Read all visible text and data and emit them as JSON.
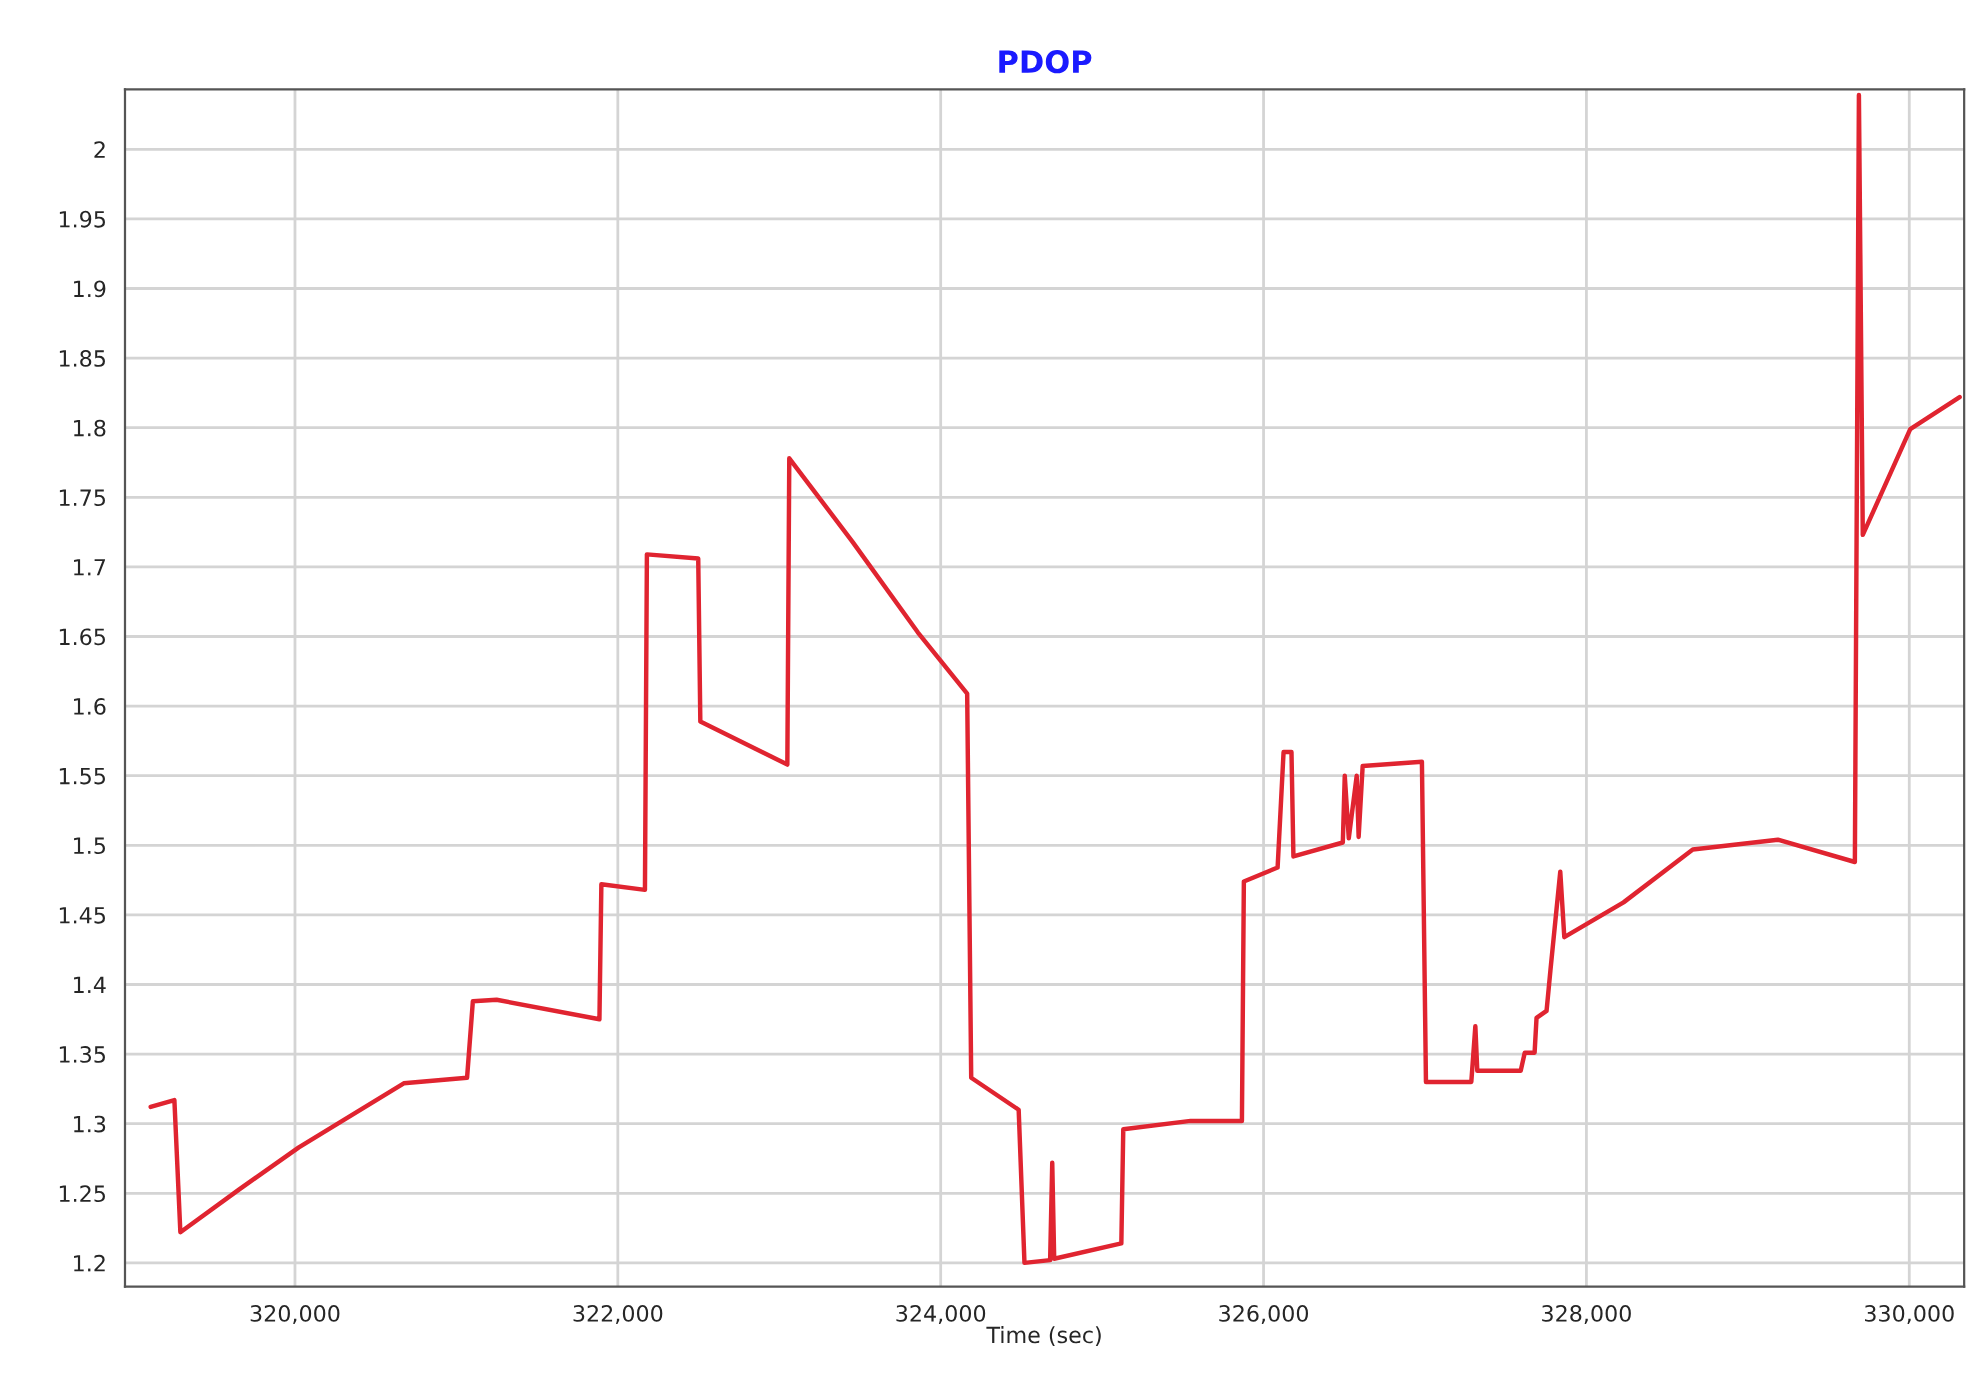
{
  "chart_data": {
    "type": "line",
    "title": "PDOP",
    "xlabel": "Time (sec)",
    "xlim": [
      318947,
      330340
    ],
    "ylim": [
      1.183,
      2.043
    ],
    "xticks": [
      {
        "value": 320000,
        "label": "320,000"
      },
      {
        "value": 322000,
        "label": "322,000"
      },
      {
        "value": 324000,
        "label": "324,000"
      },
      {
        "value": 326000,
        "label": "326,000"
      },
      {
        "value": 328000,
        "label": "328,000"
      },
      {
        "value": 330000,
        "label": "330,000"
      }
    ],
    "yticks": [
      1.2,
      1.25,
      1.3,
      1.35,
      1.4,
      1.45,
      1.5,
      1.55,
      1.6,
      1.65,
      1.7,
      1.75,
      1.8,
      1.85,
      1.9,
      1.95,
      2
    ],
    "grid": true,
    "marker": "none",
    "line_style": "solid",
    "series": [
      {
        "color": "#e02430",
        "x": [
          319106,
          319253,
          319290,
          319657,
          320024,
          320392,
          320674,
          321066,
          321102,
          321249,
          321886,
          321898,
          322168,
          322180,
          322498,
          322511,
          323050,
          323062,
          323454,
          323858,
          324164,
          324189,
          324483,
          324519,
          324678,
          324691,
          324703,
          325119,
          325131,
          325548,
          325866,
          325878,
          326087,
          326124,
          326173,
          326185,
          326491,
          326503,
          326528,
          326577,
          326589,
          326614,
          326981,
          327006,
          327287,
          327312,
          327324,
          327593,
          327618,
          327679,
          327691,
          327753,
          327777,
          327838,
          327863,
          328230,
          328659,
          329186,
          329663,
          329688,
          329712,
          330006,
          330312
        ],
        "values": [
          1.312,
          1.317,
          1.222,
          1.253,
          1.283,
          1.309,
          1.329,
          1.333,
          1.388,
          1.389,
          1.375,
          1.472,
          1.468,
          1.709,
          1.706,
          1.589,
          1.558,
          1.778,
          1.718,
          1.653,
          1.609,
          1.333,
          1.31,
          1.2,
          1.202,
          1.272,
          1.203,
          1.214,
          1.296,
          1.302,
          1.302,
          1.474,
          1.484,
          1.567,
          1.567,
          1.492,
          1.502,
          1.55,
          1.505,
          1.55,
          1.506,
          1.557,
          1.56,
          1.33,
          1.33,
          1.37,
          1.338,
          1.338,
          1.351,
          1.351,
          1.376,
          1.381,
          1.41,
          1.481,
          1.434,
          1.459,
          1.497,
          1.504,
          1.488,
          2.039,
          1.723,
          1.799,
          1.822
        ]
      }
    ]
  }
}
